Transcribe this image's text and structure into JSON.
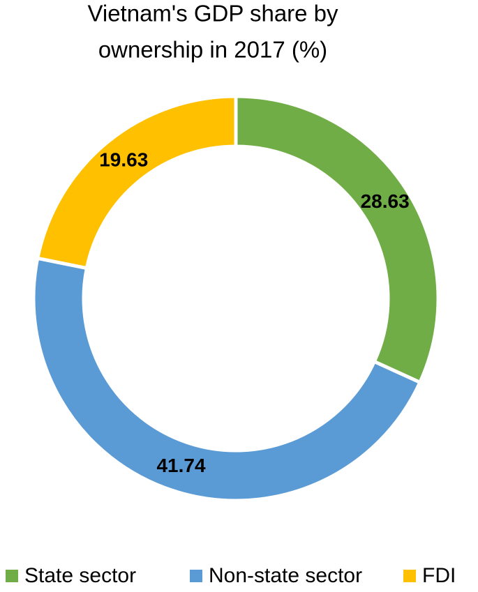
{
  "chart_data": {
    "type": "donut",
    "title": [
      "Vietnam's GDP share by",
      "ownership in 2017 (%)"
    ],
    "categories": [
      "State sector",
      "Non-state sector",
      "FDI"
    ],
    "values": [
      28.63,
      41.74,
      19.63
    ],
    "colors": [
      "#70ad47",
      "#5b9bd5",
      "#ffc000"
    ],
    "legend": "bottom"
  }
}
